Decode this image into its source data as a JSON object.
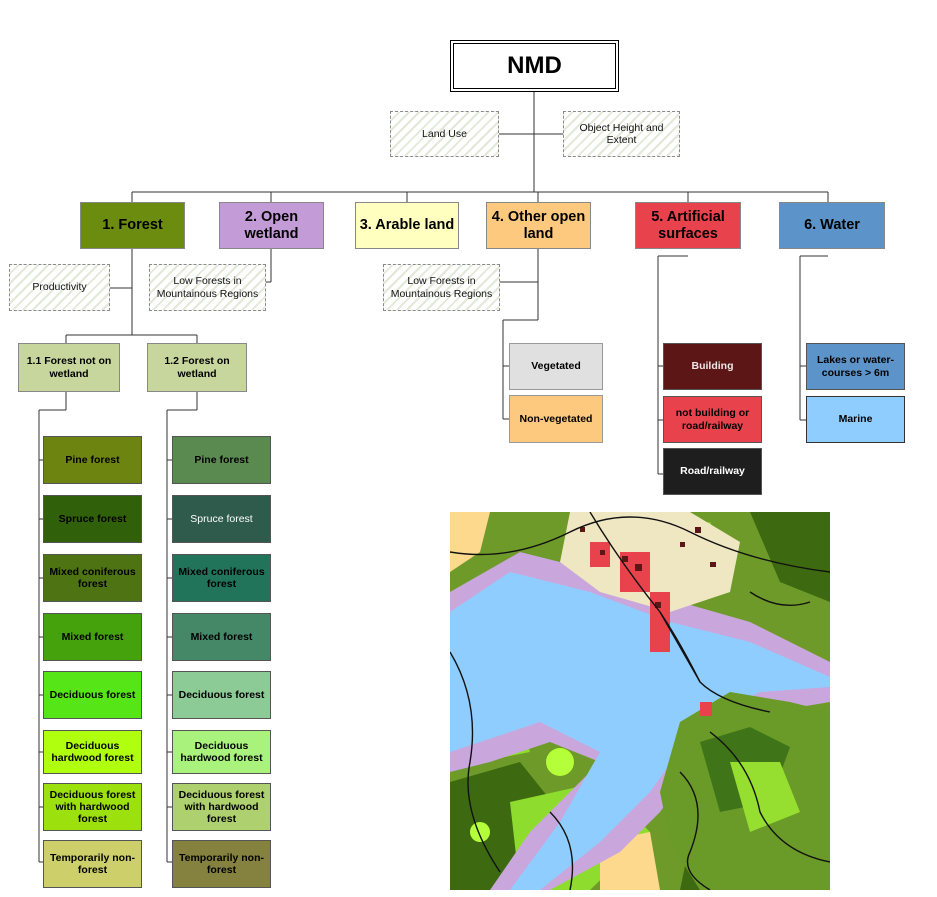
{
  "root": {
    "label": "NMD"
  },
  "aux_top": [
    {
      "label": "Land Use"
    },
    {
      "label": "Object Height and Extent"
    }
  ],
  "categories": [
    {
      "label": "1. Forest",
      "color": "#6b8c0e"
    },
    {
      "label": "2. Open wetland",
      "color": "#c39bd6"
    },
    {
      "label": "3. Arable land",
      "color": "#ffffc0"
    },
    {
      "label": "4. Other open land",
      "color": "#fdc97e"
    },
    {
      "label": "5. Artificial surfaces",
      "color": "#e8434d"
    },
    {
      "label": "6. Water",
      "color": "#5c94ca"
    }
  ],
  "aux_mid": [
    {
      "label": "Productivity"
    },
    {
      "label": "Low Forests in Mountainous Regions"
    },
    {
      "label": "Low Forests in Mountainous Regions"
    }
  ],
  "forest_groups": [
    {
      "label": "1.1 Forest not on wetland",
      "color": "#c6d69c"
    },
    {
      "label": "1.2 Forest on wetland",
      "color": "#c6d69c"
    }
  ],
  "forest_not_wetland": [
    {
      "label": "Pine forest",
      "color": "#6e8410"
    },
    {
      "label": "Spruce forest",
      "color": "#31600a"
    },
    {
      "label": "Mixed coniferous forest",
      "color": "#4d7312"
    },
    {
      "label": "Mixed forest",
      "color": "#45a20c"
    },
    {
      "label": "Deciduous forest",
      "color": "#56e618"
    },
    {
      "label": "Deciduous hardwood forest",
      "color": "#b0ff0e"
    },
    {
      "label": "Deciduous forest with hardwood forest",
      "color": "#9ce00e"
    },
    {
      "label": "Temporarily non-forest",
      "color": "#cdd06a"
    }
  ],
  "forest_wetland": [
    {
      "label": "Pine forest",
      "color": "#5a8a50"
    },
    {
      "label": "Spruce forest",
      "color": "#2e5b4b"
    },
    {
      "label": "Mixed coniferous forest",
      "color": "#21745a"
    },
    {
      "label": "Mixed forest",
      "color": "#448868"
    },
    {
      "label": "Deciduous forest",
      "color": "#8cca96"
    },
    {
      "label": "Deciduous hardwood forest",
      "color": "#a9f27c"
    },
    {
      "label": "Deciduous forest with hardwood forest",
      "color": "#aed06e"
    },
    {
      "label": "Temporarily non-forest",
      "color": "#85813e"
    }
  ],
  "other_open": [
    {
      "label": "Vegetated",
      "color": "#e0e0e0"
    },
    {
      "label": "Non-vegetated",
      "color": "#fdc97e"
    }
  ],
  "artificial": [
    {
      "label": "Building",
      "color": "#5c1616"
    },
    {
      "label": "not building or road/railway",
      "color": "#e8434d"
    },
    {
      "label": "Road/railway",
      "color": "#1e1e1e"
    }
  ],
  "water": [
    {
      "label": "Lakes or water-courses > 6m",
      "color": "#5c94ca"
    },
    {
      "label": "Marine",
      "color": "#8fcdff"
    }
  ]
}
